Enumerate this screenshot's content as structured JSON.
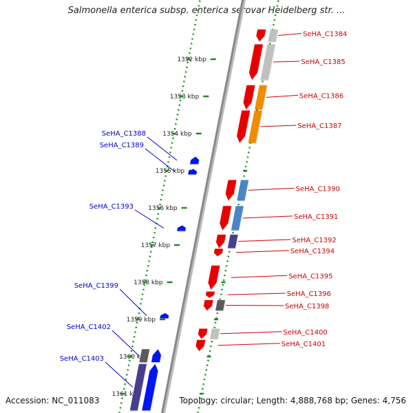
{
  "title": "Salmonella enterica subsp. enterica serovar Heidelberg str. ...",
  "accession_text": "Accession: NC_011083",
  "summary_text": "Topology: circular; Length: 4,888,768 bp; Genes: 4,756",
  "colors": {
    "forward_gene": "#e80000",
    "reverse_gene": "#0018f0",
    "cog_gray": "#c0c0c0",
    "cog_orange": "#f08c00",
    "cog_steelblue": "#4a86c6",
    "cog_purple": "#4a3c90",
    "cog_darkgray": "#5a5a5a",
    "ruler_tick": "#1e8a1e",
    "backbone": "#888888",
    "label_forward": "#cc0000",
    "label_reverse": "#0000cc"
  },
  "ruler": {
    "unit": "kbp",
    "ticks": [
      {
        "pos": 1352,
        "label": "1352 kbp"
      },
      {
        "pos": 1353,
        "label": "1353 kbp"
      },
      {
        "pos": 1354,
        "label": "1354 kbp"
      },
      {
        "pos": 1355,
        "label": "1355 kbp"
      },
      {
        "pos": 1356,
        "label": "1356 kbp"
      },
      {
        "pos": 1357,
        "label": "1357 kbp"
      },
      {
        "pos": 1358,
        "label": "1358 kbp"
      },
      {
        "pos": 1359,
        "label": "1359 kbp"
      },
      {
        "pos": 1360,
        "label": "1360 kbp"
      },
      {
        "pos": 1361,
        "label": "1361 kbp"
      }
    ]
  },
  "genes": [
    {
      "label": "SeHA_C1384",
      "strand": "forward",
      "start": 1351.2,
      "end": 1351.52,
      "cog": "cog_gray"
    },
    {
      "label": "SeHA_C1385",
      "strand": "forward",
      "start": 1351.6,
      "end": 1352.55,
      "cog": "cog_gray"
    },
    {
      "label": "SeHA_C1386",
      "strand": "forward",
      "start": 1352.7,
      "end": 1353.35,
      "cog": "cog_orange"
    },
    {
      "label": "SeHA_C1387",
      "strand": "forward",
      "start": 1353.38,
      "end": 1354.25,
      "cog": "cog_orange"
    },
    {
      "label": "SeHA_C1388",
      "strand": "reverse",
      "start": 1354.62,
      "end": 1354.82,
      "cog": ""
    },
    {
      "label": "SeHA_C1389",
      "strand": "reverse",
      "start": 1354.95,
      "end": 1355.1,
      "cog": ""
    },
    {
      "label": "SeHA_C1390",
      "strand": "forward",
      "start": 1355.25,
      "end": 1355.8,
      "cog": "cog_steelblue"
    },
    {
      "label": "SeHA_C1391",
      "strand": "forward",
      "start": 1355.95,
      "end": 1356.6,
      "cog": "cog_steelblue"
    },
    {
      "label": "SeHA_C1392",
      "strand": "forward",
      "start": 1356.72,
      "end": 1357.08,
      "cog": "cog_purple"
    },
    {
      "label": "SeHA_C1393",
      "strand": "reverse",
      "start": 1356.47,
      "end": 1356.62,
      "cog": ""
    },
    {
      "label": "SeHA_C1394",
      "strand": "forward",
      "start": 1357.1,
      "end": 1357.3,
      "cog": ""
    },
    {
      "label": "SeHA_C1395",
      "strand": "forward",
      "start": 1357.55,
      "end": 1358.2,
      "cog": ""
    },
    {
      "label": "SeHA_C1396",
      "strand": "forward",
      "start": 1358.25,
      "end": 1358.42,
      "cog": ""
    },
    {
      "label": "SeHA_C1398",
      "strand": "forward",
      "start": 1358.48,
      "end": 1358.76,
      "cog": "cog_darkgray"
    },
    {
      "label": "SeHA_C1399",
      "strand": "reverse",
      "start": 1358.83,
      "end": 1358.97,
      "cog": ""
    },
    {
      "label": "SeHA_C1400",
      "strand": "forward",
      "start": 1359.25,
      "end": 1359.52,
      "cog": "cog_gray"
    },
    {
      "label": "SeHA_C1401",
      "strand": "forward",
      "start": 1359.55,
      "end": 1359.85,
      "cog": ""
    },
    {
      "label": "SeHA_C1402",
      "strand": "reverse",
      "start": 1359.8,
      "end": 1360.15,
      "cog": "cog_darkgray"
    },
    {
      "label": "SeHA_C1403",
      "strand": "reverse",
      "start": 1360.2,
      "end": 1361.45,
      "cog": "cog_purple"
    }
  ]
}
